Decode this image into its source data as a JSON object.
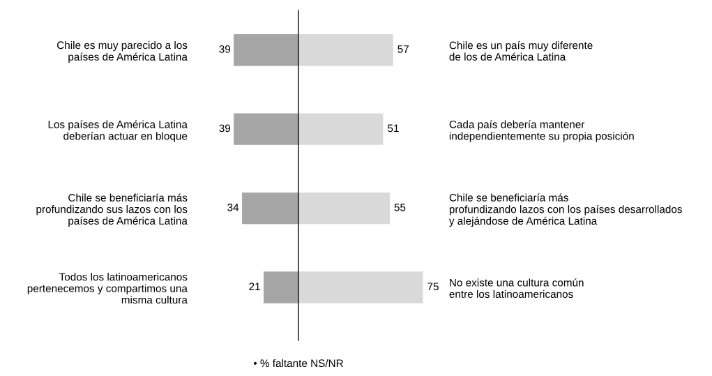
{
  "chart_data": [
    {
      "type": "bar",
      "orientation": "horizontal",
      "data_labels": true,
      "grid": false,
      "categories": [
        "Chile es muy parecido a los\npaíses de América Latina",
        "Los países de América Latina\ndeberían actuar en bloque",
        "Chile se beneficiaría más\nprofundizando sus lazos con los\npaíses de América Latina",
        "Todos los latinoamericanos\npertenecemos y compartimos una\nmisma cultura"
      ],
      "tick_labels": "y",
      "series": [
        {
          "color": "#a6a6a6",
          "values": [
            39,
            39,
            34,
            21
          ]
        }
      ],
      "annotations": [
        "• % faltante NS/NR"
      ]
    },
    {
      "type": "bar",
      "orientation": "horizontal",
      "data_labels": true,
      "grid": false,
      "categories": [
        "Chile es un país muy diferente\nde los de América Latina",
        "Cada país debería mantener\nindependientemente su propia posición",
        "Chile se beneficiaría más\nprofundizando lazos con los países desarrollados\ny alejándose de América Latina",
        "No existe una cultura común\nentre los latinoamericanos"
      ],
      "tick_labels": "y",
      "series": [
        {
          "color": "#d9d9d9",
          "values": [
            57,
            51,
            55,
            75
          ]
        }
      ]
    }
  ]
}
